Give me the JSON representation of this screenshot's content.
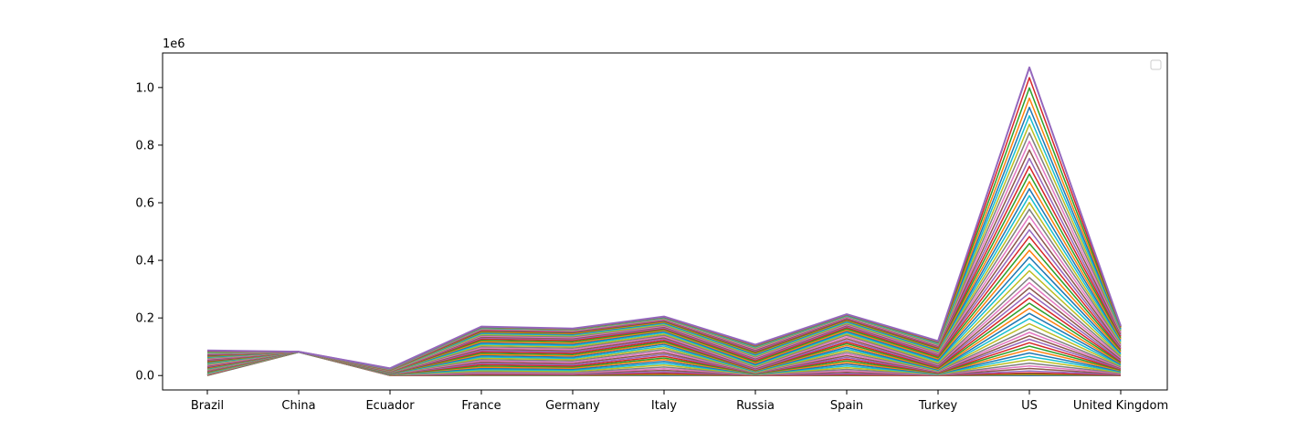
{
  "chart_data": {
    "type": "line",
    "title": "",
    "xlabel": "",
    "ylabel": "",
    "y_offset_label": "1e6",
    "ylim": [
      -0.05,
      1.12
    ],
    "yticks": [
      "0.0",
      "0.2",
      "0.4",
      "0.6",
      "0.8",
      "1.0"
    ],
    "ytick_values": [
      0.0,
      0.2,
      0.4,
      0.6,
      0.8,
      1.0
    ],
    "grid": false,
    "legend": {
      "placement": "top-right",
      "entries": []
    },
    "categories": [
      "Brazil",
      "China",
      "Ecuador",
      "France",
      "Germany",
      "Italy",
      "Russia",
      "Spain",
      "Turkey",
      "US",
      "United Kingdom"
    ],
    "final_values": [
      0.087,
      0.083,
      0.025,
      0.17,
      0.163,
      0.205,
      0.107,
      0.213,
      0.12,
      1.07,
      0.172
    ],
    "series_count": 55,
    "series_note": "Many overlapping series growing over time; values in millions (1e6)",
    "series": [
      {
        "values": [
          0.0,
          0.081,
          0.0,
          0.0,
          0.0,
          0.0,
          0.0,
          0.0,
          0.0,
          0.0,
          0.0
        ]
      },
      {
        "values": [
          0.002,
          0.082,
          0.001,
          0.004,
          0.003,
          0.009,
          0.001,
          0.003,
          0.001,
          0.01,
          0.002
        ]
      },
      {
        "values": [
          0.005,
          0.082,
          0.002,
          0.012,
          0.01,
          0.028,
          0.003,
          0.02,
          0.003,
          0.04,
          0.008
        ]
      },
      {
        "values": [
          0.01,
          0.082,
          0.003,
          0.025,
          0.022,
          0.05,
          0.005,
          0.04,
          0.006,
          0.08,
          0.015
        ]
      },
      {
        "values": [
          0.015,
          0.082,
          0.004,
          0.04,
          0.035,
          0.07,
          0.008,
          0.06,
          0.01,
          0.12,
          0.022
        ]
      },
      {
        "values": [
          0.02,
          0.082,
          0.005,
          0.055,
          0.05,
          0.09,
          0.01,
          0.08,
          0.015,
          0.16,
          0.03
        ]
      },
      {
        "values": [
          0.025,
          0.082,
          0.006,
          0.07,
          0.065,
          0.11,
          0.015,
          0.1,
          0.02,
          0.22,
          0.04
        ]
      },
      {
        "values": [
          0.03,
          0.083,
          0.008,
          0.085,
          0.08,
          0.125,
          0.02,
          0.12,
          0.03,
          0.28,
          0.05
        ]
      },
      {
        "values": [
          0.038,
          0.083,
          0.01,
          0.1,
          0.095,
          0.14,
          0.03,
          0.14,
          0.04,
          0.34,
          0.065
        ]
      },
      {
        "values": [
          0.045,
          0.083,
          0.012,
          0.115,
          0.11,
          0.155,
          0.04,
          0.155,
          0.055,
          0.42,
          0.08
        ]
      },
      {
        "values": [
          0.052,
          0.083,
          0.014,
          0.13,
          0.125,
          0.165,
          0.055,
          0.17,
          0.07,
          0.5,
          0.095
        ]
      },
      {
        "values": [
          0.06,
          0.083,
          0.016,
          0.14,
          0.135,
          0.175,
          0.065,
          0.18,
          0.08,
          0.58,
          0.11
        ]
      },
      {
        "values": [
          0.066,
          0.083,
          0.018,
          0.15,
          0.145,
          0.185,
          0.075,
          0.19,
          0.09,
          0.66,
          0.125
        ]
      },
      {
        "values": [
          0.072,
          0.083,
          0.02,
          0.158,
          0.152,
          0.192,
          0.085,
          0.198,
          0.1,
          0.75,
          0.14
        ]
      },
      {
        "values": [
          0.078,
          0.083,
          0.022,
          0.163,
          0.157,
          0.198,
          0.095,
          0.205,
          0.108,
          0.85,
          0.155
        ]
      },
      {
        "values": [
          0.083,
          0.083,
          0.024,
          0.167,
          0.16,
          0.202,
          0.102,
          0.21,
          0.115,
          0.95,
          0.165
        ]
      },
      {
        "values": [
          0.087,
          0.083,
          0.025,
          0.17,
          0.163,
          0.205,
          0.107,
          0.213,
          0.12,
          1.07,
          0.172
        ]
      }
    ]
  }
}
